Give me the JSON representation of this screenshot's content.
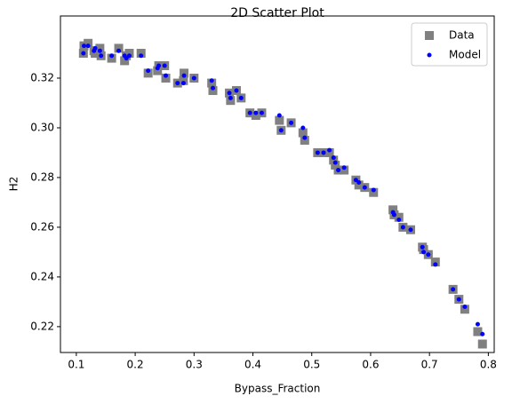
{
  "chart_data": {
    "type": "scatter",
    "title": "2D Scatter Plot",
    "x_label": "Bypass_Fraction",
    "y_label": "H2",
    "x": [
      0.112,
      0.113,
      0.12,
      0.13,
      0.132,
      0.14,
      0.142,
      0.16,
      0.172,
      0.182,
      0.185,
      0.19,
      0.21,
      0.222,
      0.238,
      0.24,
      0.25,
      0.252,
      0.272,
      0.282,
      0.283,
      0.3,
      0.33,
      0.332,
      0.36,
      0.362,
      0.372,
      0.38,
      0.395,
      0.405,
      0.415,
      0.445,
      0.448,
      0.465,
      0.485,
      0.488,
      0.51,
      0.52,
      0.53,
      0.537,
      0.54,
      0.545,
      0.555,
      0.575,
      0.58,
      0.59,
      0.605,
      0.638,
      0.64,
      0.648,
      0.655,
      0.668,
      0.688,
      0.69,
      0.698,
      0.71,
      0.74,
      0.75,
      0.76,
      0.782,
      0.79
    ],
    "series": [
      {
        "name": "Data",
        "color": "#808080",
        "marker": "square",
        "values": [
          0.33,
          0.333,
          0.334,
          0.331,
          0.33,
          0.332,
          0.329,
          0.328,
          0.332,
          0.327,
          0.329,
          0.33,
          0.33,
          0.322,
          0.323,
          0.325,
          0.325,
          0.32,
          0.318,
          0.319,
          0.322,
          0.32,
          0.318,
          0.315,
          0.314,
          0.311,
          0.315,
          0.312,
          0.306,
          0.305,
          0.306,
          0.303,
          0.299,
          0.302,
          0.298,
          0.295,
          0.29,
          0.29,
          0.29,
          0.287,
          0.285,
          0.283,
          0.283,
          0.279,
          0.277,
          0.276,
          0.274,
          0.267,
          0.265,
          0.264,
          0.26,
          0.259,
          0.252,
          0.251,
          0.249,
          0.246,
          0.235,
          0.231,
          0.227,
          0.218,
          0.213
        ]
      },
      {
        "name": "Model",
        "color": "#0000ff",
        "marker": "circle",
        "values": [
          0.33,
          0.333,
          0.333,
          0.331,
          0.332,
          0.331,
          0.329,
          0.329,
          0.331,
          0.329,
          0.328,
          0.329,
          0.329,
          0.323,
          0.324,
          0.325,
          0.325,
          0.321,
          0.318,
          0.318,
          0.321,
          0.32,
          0.319,
          0.316,
          0.314,
          0.312,
          0.315,
          0.312,
          0.306,
          0.306,
          0.306,
          0.305,
          0.299,
          0.302,
          0.3,
          0.296,
          0.29,
          0.29,
          0.291,
          0.288,
          0.286,
          0.283,
          0.284,
          0.279,
          0.278,
          0.276,
          0.275,
          0.266,
          0.265,
          0.263,
          0.26,
          0.259,
          0.252,
          0.25,
          0.249,
          0.245,
          0.235,
          0.231,
          0.228,
          0.221,
          0.217
        ]
      }
    ],
    "xlim": [
      0.073,
      0.81
    ],
    "ylim": [
      0.2096,
      0.345
    ],
    "xticks": [
      0.1,
      0.2,
      0.3,
      0.4,
      0.5,
      0.6,
      0.7,
      0.8
    ],
    "yticks": [
      0.22,
      0.24,
      0.26,
      0.28,
      {
        "value": 0.3,
        "label": "0.30"
      },
      0.32
    ],
    "legend": "upper-right"
  }
}
